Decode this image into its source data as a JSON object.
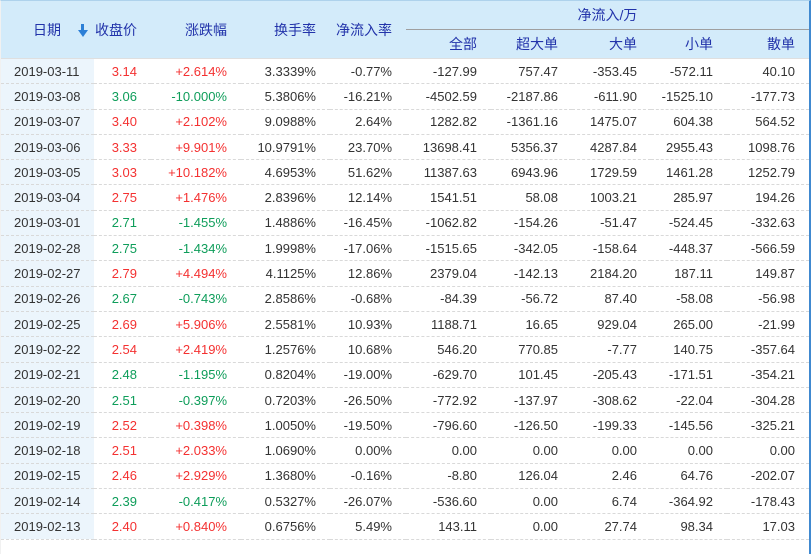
{
  "table": {
    "header": {
      "date": "日期",
      "close": "收盘价",
      "change": "涨跌幅",
      "turnover": "换手率",
      "inflow_rate": "净流入率",
      "net_inflow_group": "净流入/万",
      "sub": [
        "全部",
        "超大单",
        "大单",
        "小单",
        "散单"
      ],
      "sort_icon": "down-arrow"
    },
    "rows": [
      {
        "date": "2019-03-11",
        "close": "3.14",
        "change": "+2.614%",
        "trend": "up",
        "turnover": "3.3339%",
        "inflow_rate": "-0.77%",
        "all": "-127.99",
        "super_large": "757.47",
        "large": "-353.45",
        "small": "-572.11",
        "retail": "40.10"
      },
      {
        "date": "2019-03-08",
        "close": "3.06",
        "change": "-10.000%",
        "trend": "down",
        "turnover": "5.3806%",
        "inflow_rate": "-16.21%",
        "all": "-4502.59",
        "super_large": "-2187.86",
        "large": "-611.90",
        "small": "-1525.10",
        "retail": "-177.73"
      },
      {
        "date": "2019-03-07",
        "close": "3.40",
        "change": "+2.102%",
        "trend": "up",
        "turnover": "9.0988%",
        "inflow_rate": "2.64%",
        "all": "1282.82",
        "super_large": "-1361.16",
        "large": "1475.07",
        "small": "604.38",
        "retail": "564.52"
      },
      {
        "date": "2019-03-06",
        "close": "3.33",
        "change": "+9.901%",
        "trend": "up",
        "turnover": "10.9791%",
        "inflow_rate": "23.70%",
        "all": "13698.41",
        "super_large": "5356.37",
        "large": "4287.84",
        "small": "2955.43",
        "retail": "1098.76"
      },
      {
        "date": "2019-03-05",
        "close": "3.03",
        "change": "+10.182%",
        "trend": "up",
        "turnover": "4.6953%",
        "inflow_rate": "51.62%",
        "all": "11387.63",
        "super_large": "6943.96",
        "large": "1729.59",
        "small": "1461.28",
        "retail": "1252.79"
      },
      {
        "date": "2019-03-04",
        "close": "2.75",
        "change": "+1.476%",
        "trend": "up",
        "turnover": "2.8396%",
        "inflow_rate": "12.14%",
        "all": "1541.51",
        "super_large": "58.08",
        "large": "1003.21",
        "small": "285.97",
        "retail": "194.26"
      },
      {
        "date": "2019-03-01",
        "close": "2.71",
        "change": "-1.455%",
        "trend": "down",
        "turnover": "1.4886%",
        "inflow_rate": "-16.45%",
        "all": "-1062.82",
        "super_large": "-154.26",
        "large": "-51.47",
        "small": "-524.45",
        "retail": "-332.63"
      },
      {
        "date": "2019-02-28",
        "close": "2.75",
        "change": "-1.434%",
        "trend": "down",
        "turnover": "1.9998%",
        "inflow_rate": "-17.06%",
        "all": "-1515.65",
        "super_large": "-342.05",
        "large": "-158.64",
        "small": "-448.37",
        "retail": "-566.59"
      },
      {
        "date": "2019-02-27",
        "close": "2.79",
        "change": "+4.494%",
        "trend": "up",
        "turnover": "4.1125%",
        "inflow_rate": "12.86%",
        "all": "2379.04",
        "super_large": "-142.13",
        "large": "2184.20",
        "small": "187.11",
        "retail": "149.87"
      },
      {
        "date": "2019-02-26",
        "close": "2.67",
        "change": "-0.743%",
        "trend": "down",
        "turnover": "2.8586%",
        "inflow_rate": "-0.68%",
        "all": "-84.39",
        "super_large": "-56.72",
        "large": "87.40",
        "small": "-58.08",
        "retail": "-56.98"
      },
      {
        "date": "2019-02-25",
        "close": "2.69",
        "change": "+5.906%",
        "trend": "up",
        "turnover": "2.5581%",
        "inflow_rate": "10.93%",
        "all": "1188.71",
        "super_large": "16.65",
        "large": "929.04",
        "small": "265.00",
        "retail": "-21.99"
      },
      {
        "date": "2019-02-22",
        "close": "2.54",
        "change": "+2.419%",
        "trend": "up",
        "turnover": "1.2576%",
        "inflow_rate": "10.68%",
        "all": "546.20",
        "super_large": "770.85",
        "large": "-7.77",
        "small": "140.75",
        "retail": "-357.64"
      },
      {
        "date": "2019-02-21",
        "close": "2.48",
        "change": "-1.195%",
        "trend": "down",
        "turnover": "0.8204%",
        "inflow_rate": "-19.00%",
        "all": "-629.70",
        "super_large": "101.45",
        "large": "-205.43",
        "small": "-171.51",
        "retail": "-354.21"
      },
      {
        "date": "2019-02-20",
        "close": "2.51",
        "change": "-0.397%",
        "trend": "down",
        "turnover": "0.7203%",
        "inflow_rate": "-26.50%",
        "all": "-772.92",
        "super_large": "-137.97",
        "large": "-308.62",
        "small": "-22.04",
        "retail": "-304.28"
      },
      {
        "date": "2019-02-19",
        "close": "2.52",
        "change": "+0.398%",
        "trend": "up",
        "turnover": "1.0050%",
        "inflow_rate": "-19.50%",
        "all": "-796.60",
        "super_large": "-126.50",
        "large": "-199.33",
        "small": "-145.56",
        "retail": "-325.21"
      },
      {
        "date": "2019-02-18",
        "close": "2.51",
        "change": "+2.033%",
        "trend": "up",
        "turnover": "1.0690%",
        "inflow_rate": "0.00%",
        "all": "0.00",
        "super_large": "0.00",
        "large": "0.00",
        "small": "0.00",
        "retail": "0.00"
      },
      {
        "date": "2019-02-15",
        "close": "2.46",
        "change": "+2.929%",
        "trend": "up",
        "turnover": "1.3680%",
        "inflow_rate": "-0.16%",
        "all": "-8.80",
        "super_large": "126.04",
        "large": "2.46",
        "small": "64.76",
        "retail": "-202.07"
      },
      {
        "date": "2019-02-14",
        "close": "2.39",
        "change": "-0.417%",
        "trend": "down",
        "turnover": "0.5327%",
        "inflow_rate": "-26.07%",
        "all": "-536.60",
        "super_large": "0.00",
        "large": "6.74",
        "small": "-364.92",
        "retail": "-178.43"
      },
      {
        "date": "2019-02-13",
        "close": "2.40",
        "change": "+0.840%",
        "trend": "up",
        "turnover": "0.6756%",
        "inflow_rate": "5.49%",
        "all": "143.11",
        "super_large": "0.00",
        "large": "27.74",
        "small": "98.34",
        "retail": "17.03"
      }
    ]
  },
  "colors": {
    "up": "#f43131",
    "down": "#0e9d5a",
    "header_bg": "#d3ebfa",
    "header_text": "#2233aa",
    "date_col_bg": "#ecf5fc",
    "icon_blue": "#2b7fd6",
    "row_line": "#d9d9d9",
    "text": "#333333",
    "frame_top": "#aed2ec",
    "frame_right": "#4089d0"
  }
}
